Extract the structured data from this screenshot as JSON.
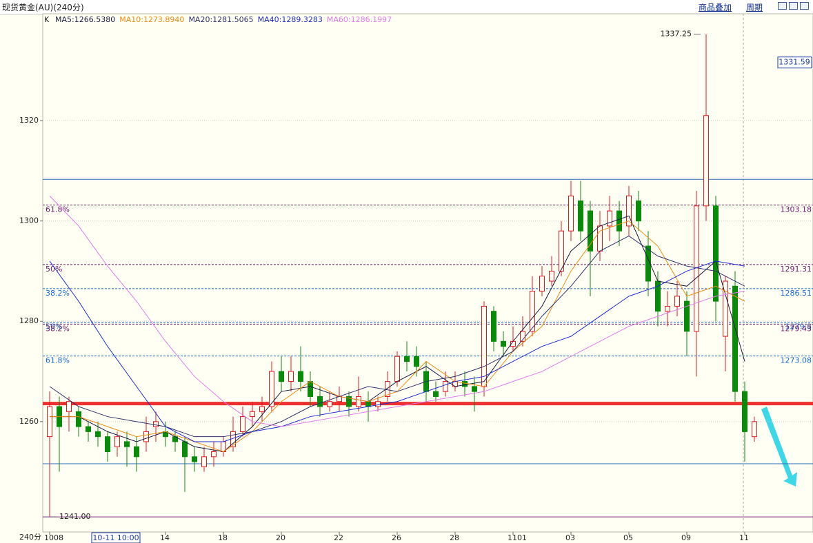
{
  "chart_data": {
    "type": "candlestick",
    "title": "现货黄金(AU)(240分)",
    "menu": [
      "商品叠加",
      "周期"
    ],
    "indicator_label": "K",
    "period_label": "240分",
    "cursor_label": "10-11 10:00",
    "categories": [
      "1008",
      null,
      null,
      null,
      null,
      null,
      null,
      null,
      null,
      null,
      null,
      null,
      "14",
      null,
      null,
      null,
      null,
      null,
      "18",
      null,
      null,
      null,
      null,
      null,
      "20",
      null,
      null,
      null,
      null,
      null,
      "22",
      null,
      null,
      null,
      null,
      null,
      "26",
      null,
      null,
      null,
      null,
      null,
      "28",
      null,
      null,
      null,
      null,
      null,
      "1101",
      null,
      null,
      null,
      null,
      null,
      "03",
      null,
      null,
      null,
      null,
      null,
      "05",
      null,
      null,
      null,
      null,
      null,
      "09",
      null,
      null,
      null,
      null,
      null,
      "11",
      null
    ],
    "open": [
      1257,
      1263,
      1262,
      1262,
      1259,
      1258,
      1257,
      1255,
      1256,
      1255,
      1256,
      1259,
      1258,
      1257,
      1256,
      1253,
      1251,
      1253,
      1254,
      1255,
      1258,
      1261,
      1262,
      1263,
      1270,
      1268,
      1270,
      1268,
      1265,
      1263,
      1264,
      1265,
      1263,
      1264,
      1263,
      1265,
      1268,
      1273,
      1273,
      1270,
      1266,
      1266,
      1267,
      1268,
      1267,
      1267,
      1282,
      1276,
      1275,
      1276,
      1278,
      1286,
      1288,
      1290,
      1298,
      1304,
      1302,
      1294,
      1299,
      1302,
      1299,
      1304,
      1295,
      1288,
      1282,
      1283,
      1284,
      1278,
      1303,
      1303,
      1277,
      1287,
      1266,
      1257
    ],
    "high": [
      1266,
      1265,
      1265,
      1263,
      1260,
      1260,
      1258,
      1258,
      1258,
      1257,
      1261,
      1262,
      1260,
      1258,
      1257,
      1255,
      1255,
      1256,
      1257,
      1261,
      1263,
      1264,
      1265,
      1272,
      1273,
      1273,
      1275,
      1270,
      1267,
      1266,
      1267,
      1266,
      1269,
      1266,
      1265,
      1270,
      1274,
      1276,
      1275,
      1272,
      1268,
      1270,
      1270,
      1270,
      1269,
      1284,
      1283,
      1278,
      1279,
      1281,
      1289,
      1291,
      1293,
      1300,
      1308,
      1308,
      1304,
      1302,
      1305,
      1304,
      1307,
      1306,
      1298,
      1290,
      1286,
      1288,
      1286,
      1306,
      1337.25,
      1305,
      1289,
      1290,
      1268,
      1261
    ],
    "low": [
      1241,
      1250,
      1258,
      1257,
      1256,
      1255,
      1252,
      1253,
      1251,
      1250,
      1254,
      1256,
      1255,
      1254,
      1246,
      1250,
      1250,
      1251,
      1253,
      1254,
      1257,
      1259,
      1260,
      1262,
      1266,
      1266,
      1266,
      1263,
      1261,
      1262,
      1262,
      1261,
      1262,
      1260,
      1262,
      1264,
      1267,
      1270,
      1269,
      1264,
      1264,
      1265,
      1266,
      1265,
      1262,
      1265,
      1274,
      1273,
      1274,
      1275,
      1277,
      1285,
      1287,
      1289,
      1296,
      1296,
      1285,
      1292,
      1296,
      1295,
      1297,
      1298,
      1285,
      1279,
      1279,
      1281,
      1273,
      1269,
      1300,
      1280,
      1270,
      1264,
      1252,
      1256
    ],
    "close": [
      1263,
      1259,
      1264,
      1259,
      1258,
      1257,
      1254,
      1257,
      1255,
      1253,
      1258,
      1260,
      1257,
      1256,
      1253,
      1252,
      1253,
      1254,
      1256,
      1258,
      1261,
      1262,
      1263,
      1270,
      1268,
      1270,
      1268,
      1265,
      1263,
      1264,
      1265,
      1263,
      1265,
      1263,
      1264,
      1268,
      1273,
      1272,
      1271,
      1266,
      1265,
      1268,
      1268,
      1267,
      1266,
      1283,
      1276,
      1275,
      1276,
      1278,
      1286,
      1289,
      1290,
      1298,
      1305,
      1298,
      1294,
      1299,
      1302,
      1298,
      1305,
      1300,
      1288,
      1282,
      1283,
      1285,
      1278,
      1303,
      1321,
      1284,
      1288,
      1266,
      1258,
      1260
    ],
    "up_color": "#e8141e",
    "down_color": "#0a8a0a",
    "ylim": [
      1238,
      1341.3
    ],
    "yticks": [
      1260,
      1280,
      1300,
      1320
    ],
    "grid": true,
    "ma_series": [
      {
        "name": "MA5:1266.5380",
        "color": "#1a1a40",
        "x": [
          0,
          3,
          6,
          9,
          12,
          15,
          18,
          21,
          24,
          27,
          30,
          33,
          36,
          39,
          42,
          45,
          48,
          51,
          54,
          57,
          60,
          63,
          66,
          69,
          72
        ],
        "values": [
          1261,
          1261,
          1258,
          1256,
          1258,
          1255,
          1254,
          1259,
          1266,
          1267,
          1265,
          1264,
          1268,
          1271,
          1267,
          1268,
          1276,
          1283,
          1294,
          1299,
          1301,
          1288,
          1287,
          1292,
          1272
        ]
      },
      {
        "name": "MA10:1273.8940",
        "color": "#f08a10",
        "x": [
          0,
          3,
          6,
          9,
          12,
          15,
          18,
          21,
          24,
          27,
          30,
          33,
          36,
          39,
          42,
          45,
          48,
          51,
          54,
          57,
          60,
          63,
          66,
          69,
          72
        ],
        "values": [
          1261,
          1261,
          1259,
          1257,
          1258,
          1256,
          1254,
          1258,
          1264,
          1268,
          1265,
          1264,
          1266,
          1272,
          1268,
          1267,
          1274,
          1279,
          1290,
          1298,
          1300,
          1295,
          1285,
          1287,
          1284
        ]
      },
      {
        "name": "MA20:1281.5065",
        "color": "#30306a",
        "x": [
          0,
          3,
          6,
          9,
          12,
          15,
          18,
          21,
          24,
          27,
          30,
          33,
          36,
          39,
          42,
          45,
          48,
          51,
          54,
          57,
          60,
          63,
          66,
          69,
          72
        ],
        "values": [
          1267,
          1263,
          1261,
          1260,
          1259,
          1257,
          1257,
          1258,
          1260,
          1263,
          1265,
          1267,
          1266,
          1268,
          1269,
          1271,
          1274,
          1281,
          1287,
          1294,
          1297,
          1293,
          1291,
          1290,
          1287
        ]
      },
      {
        "name": "MA40:1289.3283",
        "color": "#1c2ad0",
        "x": [
          0,
          3,
          6,
          9,
          12,
          15,
          18,
          21,
          24,
          27,
          30,
          33,
          36,
          39,
          42,
          45,
          48,
          51,
          54,
          57,
          60,
          63,
          66,
          69,
          72
        ],
        "values": [
          1292,
          1284,
          1275,
          1267,
          1259,
          1256,
          1256,
          1258,
          1259,
          1261,
          1262,
          1263,
          1264,
          1266,
          1268,
          1269,
          1272,
          1275,
          1277,
          1281,
          1285,
          1287,
          1290,
          1292,
          1291
        ]
      },
      {
        "name": "MA60:1286.1997",
        "color": "#e07ae8",
        "x": [
          0,
          3,
          6,
          9,
          12,
          15,
          18,
          21,
          24,
          27,
          30,
          33,
          36,
          39,
          42,
          45,
          48,
          51,
          54,
          57,
          60,
          63,
          66,
          69,
          72
        ],
        "values": [
          1305,
          1299,
          1291,
          1284,
          1276,
          1269,
          1264,
          1260,
          1259,
          1260,
          1261,
          1262,
          1263,
          1264,
          1265,
          1266,
          1268,
          1270,
          1273,
          1276,
          1279,
          1281,
          1283,
          1285,
          1286
        ]
      }
    ],
    "levels": [
      {
        "value": 1308.3,
        "color": "#2a6ab0"
      },
      {
        "value": 1251.6,
        "color": "#2a6ab0"
      },
      {
        "value": 1241,
        "color": "#7a2a7a"
      },
      {
        "value": 1263.6,
        "color": "#ee3030",
        "emphasis": true
      }
    ],
    "fib": [
      {
        "value": 1303.18,
        "label": "61.8%",
        "color": "#6a1a6a"
      },
      {
        "value": 1291.31,
        "label": "50%",
        "color": "#6a1a6a"
      },
      {
        "value": 1286.51,
        "label": "38.2%",
        "color": "#1a6ad0"
      },
      {
        "value": 1279.8,
        "label": "50%",
        "color": "#1a6ad0"
      },
      {
        "value": 1279.43,
        "label": "38.2%",
        "color": "#6a1a6a"
      },
      {
        "value": 1273.08,
        "label": "61.8%",
        "color": "#1a6ad0"
      }
    ],
    "annotations": [
      1337.25,
      {
        "value": 1241,
        "label": "1241.00"
      }
    ],
    "price_tag": 1331.59
  }
}
